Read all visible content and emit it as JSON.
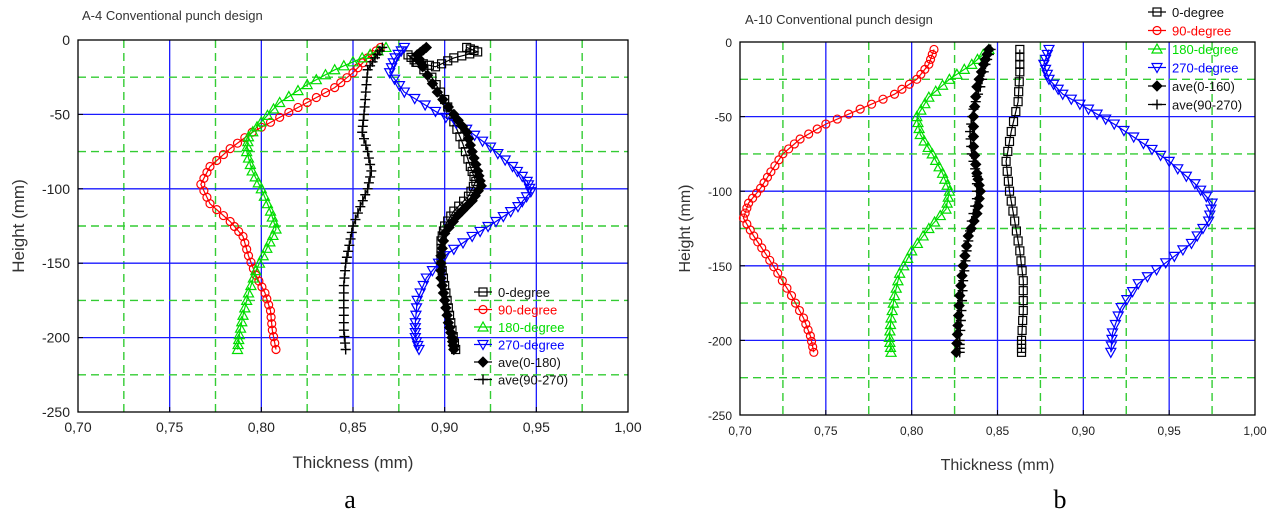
{
  "captions": [
    "a",
    "b"
  ],
  "chart_data": [
    {
      "type": "line",
      "title": "A-4 Conventional punch design",
      "xlabel": "Thickness (mm)",
      "ylabel": "Height (mm)",
      "xlim": [
        0.7,
        1.0
      ],
      "ylim": [
        -250,
        0
      ],
      "xticks": [
        "0,70",
        "0,75",
        "0,80",
        "0,85",
        "0,90",
        "0,95",
        "1,00"
      ],
      "yticks": [
        "0",
        "-50",
        "-100",
        "-150",
        "-200",
        "-250"
      ],
      "grid": true,
      "legend_position": "bottom-right",
      "series": [
        {
          "name": "0-degree",
          "color": "#000000",
          "marker": "square",
          "points": [
            [
              0.912,
              -5
            ],
            [
              0.918,
              -8
            ],
            [
              0.905,
              -12
            ],
            [
              0.895,
              -18
            ],
            [
              0.885,
              -15
            ],
            [
              0.88,
              -10
            ],
            [
              0.893,
              -25
            ],
            [
              0.9,
              -40
            ],
            [
              0.905,
              -55
            ],
            [
              0.91,
              -70
            ],
            [
              0.914,
              -85
            ],
            [
              0.917,
              -95
            ],
            [
              0.913,
              -105
            ],
            [
              0.905,
              -115
            ],
            [
              0.9,
              -125
            ],
            [
              0.898,
              -135
            ],
            [
              0.898,
              -150
            ],
            [
              0.9,
              -165
            ],
            [
              0.902,
              -180
            ],
            [
              0.904,
              -195
            ],
            [
              0.906,
              -208
            ]
          ]
        },
        {
          "name": "90-degree",
          "color": "#ff0000",
          "marker": "circle",
          "points": [
            [
              0.865,
              -5
            ],
            [
              0.858,
              -12
            ],
            [
              0.85,
              -22
            ],
            [
              0.84,
              -32
            ],
            [
              0.825,
              -42
            ],
            [
              0.81,
              -52
            ],
            [
              0.795,
              -62
            ],
            [
              0.783,
              -73
            ],
            [
              0.772,
              -85
            ],
            [
              0.767,
              -97
            ],
            [
              0.772,
              -110
            ],
            [
              0.783,
              -122
            ],
            [
              0.79,
              -132
            ],
            [
              0.793,
              -145
            ],
            [
              0.797,
              -158
            ],
            [
              0.802,
              -170
            ],
            [
              0.805,
              -182
            ],
            [
              0.806,
              -195
            ],
            [
              0.808,
              -208
            ]
          ]
        },
        {
          "name": "180-degree",
          "color": "#00dd00",
          "marker": "triangle-up",
          "points": [
            [
              0.868,
              -5
            ],
            [
              0.855,
              -12
            ],
            [
              0.84,
              -20
            ],
            [
              0.825,
              -30
            ],
            [
              0.81,
              -42
            ],
            [
              0.8,
              -55
            ],
            [
              0.793,
              -65
            ],
            [
              0.792,
              -75
            ],
            [
              0.795,
              -88
            ],
            [
              0.8,
              -100
            ],
            [
              0.805,
              -115
            ],
            [
              0.808,
              -127
            ],
            [
              0.803,
              -140
            ],
            [
              0.797,
              -155
            ],
            [
              0.793,
              -170
            ],
            [
              0.79,
              -185
            ],
            [
              0.788,
              -198
            ],
            [
              0.787,
              -208
            ]
          ]
        },
        {
          "name": "270-degree",
          "color": "#0000ff",
          "marker": "triangle-down",
          "points": [
            [
              0.878,
              -5
            ],
            [
              0.873,
              -12
            ],
            [
              0.87,
              -22
            ],
            [
              0.878,
              -35
            ],
            [
              0.895,
              -48
            ],
            [
              0.912,
              -60
            ],
            [
              0.925,
              -72
            ],
            [
              0.937,
              -85
            ],
            [
              0.945,
              -95
            ],
            [
              0.947,
              -102
            ],
            [
              0.94,
              -112
            ],
            [
              0.928,
              -122
            ],
            [
              0.915,
              -132
            ],
            [
              0.9,
              -145
            ],
            [
              0.89,
              -160
            ],
            [
              0.885,
              -175
            ],
            [
              0.884,
              -190
            ],
            [
              0.884,
              -200
            ],
            [
              0.886,
              -208
            ]
          ]
        },
        {
          "name": "ave(0-180)",
          "color": "#000000",
          "marker": "diamond",
          "points": [
            [
              0.89,
              -5
            ],
            [
              0.885,
              -10
            ],
            [
              0.888,
              -18
            ],
            [
              0.896,
              -35
            ],
            [
              0.905,
              -50
            ],
            [
              0.912,
              -62
            ],
            [
              0.915,
              -75
            ],
            [
              0.918,
              -88
            ],
            [
              0.92,
              -98
            ],
            [
              0.915,
              -108
            ],
            [
              0.907,
              -118
            ],
            [
              0.9,
              -130
            ],
            [
              0.898,
              -145
            ],
            [
              0.898,
              -160
            ],
            [
              0.9,
              -175
            ],
            [
              0.902,
              -190
            ],
            [
              0.904,
              -200
            ],
            [
              0.905,
              -208
            ]
          ]
        },
        {
          "name": "ave(90-270)",
          "color": "#000000",
          "marker": "plus",
          "points": [
            [
              0.866,
              -5
            ],
            [
              0.862,
              -12
            ],
            [
              0.858,
              -20
            ],
            [
              0.857,
              -35
            ],
            [
              0.856,
              -50
            ],
            [
              0.855,
              -62
            ],
            [
              0.858,
              -75
            ],
            [
              0.86,
              -88
            ],
            [
              0.858,
              -100
            ],
            [
              0.854,
              -112
            ],
            [
              0.85,
              -125
            ],
            [
              0.848,
              -138
            ],
            [
              0.846,
              -150
            ],
            [
              0.845,
              -165
            ],
            [
              0.845,
              -180
            ],
            [
              0.845,
              -195
            ],
            [
              0.846,
              -208
            ]
          ]
        }
      ]
    },
    {
      "type": "line",
      "title": "A-10 Conventional punch design",
      "xlabel": "Thickness (mm)",
      "ylabel": "Height (mm)",
      "xlim": [
        0.7,
        1.0
      ],
      "ylim": [
        -250,
        0
      ],
      "xticks": [
        "0,70",
        "0,75",
        "0,80",
        "0,85",
        "0,90",
        "0,95",
        "1,00"
      ],
      "yticks": [
        "0",
        "-50",
        "-100",
        "-150",
        "-200",
        "-250"
      ],
      "grid": true,
      "legend_position": "top-right",
      "series": [
        {
          "name": "0-degree",
          "color": "#000000",
          "marker": "square",
          "points": [
            [
              0.863,
              -5
            ],
            [
              0.863,
              -20
            ],
            [
              0.862,
              -40
            ],
            [
              0.858,
              -60
            ],
            [
              0.855,
              -80
            ],
            [
              0.857,
              -100
            ],
            [
              0.86,
              -120
            ],
            [
              0.863,
              -140
            ],
            [
              0.865,
              -160
            ],
            [
              0.865,
              -180
            ],
            [
              0.864,
              -200
            ],
            [
              0.864,
              -208
            ]
          ]
        },
        {
          "name": "90-degree",
          "color": "#ff0000",
          "marker": "circle",
          "points": [
            [
              0.813,
              -5
            ],
            [
              0.81,
              -15
            ],
            [
              0.803,
              -25
            ],
            [
              0.79,
              -35
            ],
            [
              0.77,
              -45
            ],
            [
              0.75,
              -55
            ],
            [
              0.735,
              -65
            ],
            [
              0.725,
              -75
            ],
            [
              0.718,
              -87
            ],
            [
              0.712,
              -98
            ],
            [
              0.705,
              -108
            ],
            [
              0.702,
              -118
            ],
            [
              0.708,
              -130
            ],
            [
              0.715,
              -142
            ],
            [
              0.722,
              -155
            ],
            [
              0.73,
              -170
            ],
            [
              0.737,
              -185
            ],
            [
              0.741,
              -197
            ],
            [
              0.743,
              -208
            ]
          ]
        },
        {
          "name": "180-degree",
          "color": "#00dd00",
          "marker": "triangle-up",
          "points": [
            [
              0.845,
              -5
            ],
            [
              0.835,
              -15
            ],
            [
              0.822,
              -25
            ],
            [
              0.81,
              -37
            ],
            [
              0.803,
              -50
            ],
            [
              0.805,
              -62
            ],
            [
              0.812,
              -75
            ],
            [
              0.818,
              -88
            ],
            [
              0.822,
              -100
            ],
            [
              0.82,
              -112
            ],
            [
              0.81,
              -125
            ],
            [
              0.8,
              -140
            ],
            [
              0.793,
              -155
            ],
            [
              0.79,
              -170
            ],
            [
              0.788,
              -185
            ],
            [
              0.787,
              -198
            ],
            [
              0.788,
              -208
            ]
          ]
        },
        {
          "name": "270-degree",
          "color": "#0000ff",
          "marker": "triangle-down",
          "points": [
            [
              0.88,
              -5
            ],
            [
              0.877,
              -15
            ],
            [
              0.88,
              -25
            ],
            [
              0.888,
              -35
            ],
            [
              0.903,
              -45
            ],
            [
              0.918,
              -55
            ],
            [
              0.935,
              -68
            ],
            [
              0.95,
              -80
            ],
            [
              0.965,
              -95
            ],
            [
              0.975,
              -108
            ],
            [
              0.973,
              -120
            ],
            [
              0.963,
              -135
            ],
            [
              0.948,
              -148
            ],
            [
              0.932,
              -162
            ],
            [
              0.922,
              -178
            ],
            [
              0.917,
              -195
            ],
            [
              0.916,
              -208
            ]
          ]
        },
        {
          "name": "ave(0-160)",
          "color": "#000000",
          "marker": "diamond",
          "points": [
            [
              0.845,
              -5
            ],
            [
              0.842,
              -15
            ],
            [
              0.838,
              -30
            ],
            [
              0.836,
              -50
            ],
            [
              0.836,
              -70
            ],
            [
              0.838,
              -88
            ],
            [
              0.84,
              -100
            ],
            [
              0.838,
              -115
            ],
            [
              0.833,
              -130
            ],
            [
              0.83,
              -150
            ],
            [
              0.828,
              -170
            ],
            [
              0.827,
              -190
            ],
            [
              0.826,
              -208
            ]
          ]
        },
        {
          "name": "ave(90-270)",
          "color": "#000000",
          "marker": "plus",
          "points": [
            [
              0.846,
              -5
            ],
            [
              0.843,
              -15
            ],
            [
              0.84,
              -30
            ],
            [
              0.836,
              -45
            ],
            [
              0.834,
              -60
            ],
            [
              0.835,
              -75
            ],
            [
              0.838,
              -90
            ],
            [
              0.838,
              -105
            ],
            [
              0.835,
              -120
            ],
            [
              0.832,
              -140
            ],
            [
              0.83,
              -160
            ],
            [
              0.829,
              -180
            ],
            [
              0.828,
              -200
            ],
            [
              0.828,
              -208
            ]
          ]
        }
      ]
    }
  ]
}
